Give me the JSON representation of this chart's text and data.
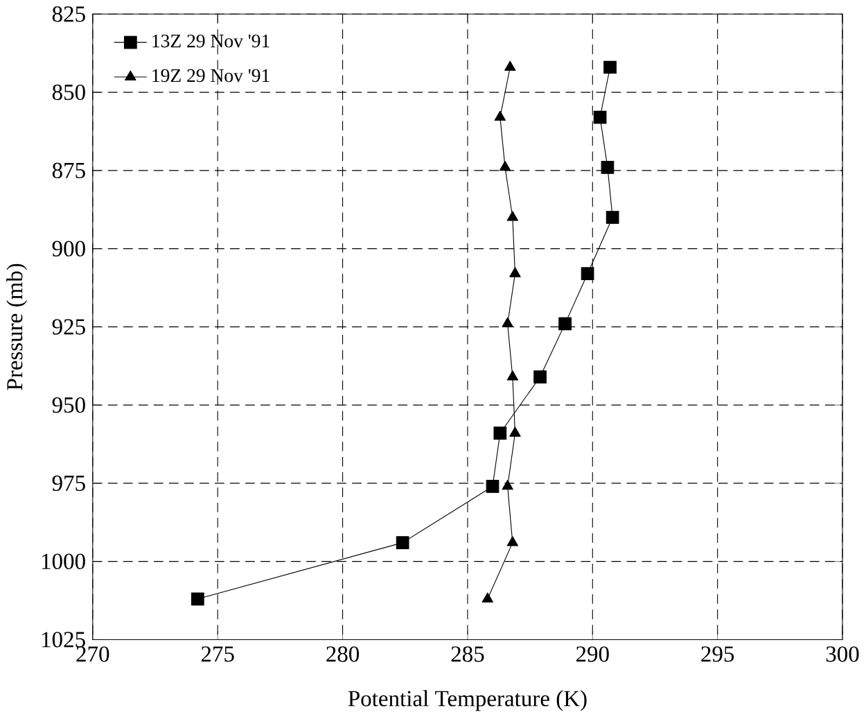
{
  "chart_data": {
    "type": "line",
    "xlabel": "Potential Temperature (K)",
    "ylabel": "Pressure (mb)",
    "xlim": [
      270,
      300
    ],
    "xticks": [
      270,
      275,
      280,
      285,
      290,
      295,
      300
    ],
    "ylim": [
      1025,
      825
    ],
    "yticks": [
      825,
      850,
      875,
      900,
      925,
      950,
      975,
      1000,
      1025
    ],
    "grid": true,
    "legend": "top left",
    "line_style": "solid",
    "series": [
      {
        "name": "13Z 29 Nov '91",
        "color": "#000000",
        "marker": "square",
        "x": [
          290.7,
          290.3,
          290.6,
          290.8,
          289.8,
          288.9,
          287.9,
          286.3,
          286.0,
          282.4,
          274.2
        ],
        "values": [
          842,
          858,
          874,
          890,
          908,
          924,
          941,
          959,
          976,
          994,
          1012
        ]
      },
      {
        "name": "19Z 29 Nov '91",
        "color": "#000000",
        "marker": "triangle",
        "x": [
          286.7,
          286.3,
          286.5,
          286.8,
          286.9,
          286.6,
          286.8,
          286.9,
          286.6,
          286.8,
          285.8
        ],
        "values": [
          842,
          858,
          874,
          890,
          908,
          924,
          941,
          959,
          976,
          994,
          1012
        ]
      }
    ]
  }
}
